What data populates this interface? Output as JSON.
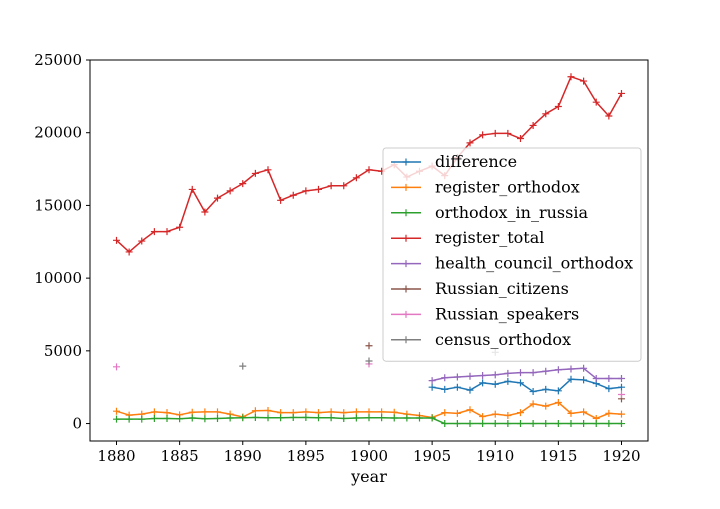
{
  "chart_data": {
    "type": "line",
    "xlabel": "year",
    "ylabel": "",
    "xlim": [
      1877.9,
      1922.1
    ],
    "ylim": [
      -1200,
      25000
    ],
    "xticks": [
      1880,
      1885,
      1890,
      1895,
      1900,
      1905,
      1910,
      1915,
      1920
    ],
    "xtick_labels": [
      "1880",
      "1885",
      "1890",
      "1895",
      "1900",
      "1905",
      "1910",
      "1915",
      "1920"
    ],
    "yticks": [
      0,
      5000,
      10000,
      15000,
      20000,
      25000
    ],
    "ytick_labels": [
      "0",
      "5000",
      "10000",
      "15000",
      "20000",
      "25000"
    ],
    "grid": false,
    "legend_position": "center-right",
    "marker": "+",
    "series": [
      {
        "name": "difference",
        "color": "#1f77b4",
        "x": [
          1905,
          1906,
          1907,
          1908,
          1909,
          1910,
          1911,
          1912,
          1913,
          1914,
          1915,
          1916,
          1917,
          1918,
          1919,
          1920
        ],
        "y": [
          2500,
          2350,
          2500,
          2300,
          2800,
          2700,
          2900,
          2800,
          2200,
          2350,
          2250,
          3050,
          3000,
          2750,
          2400,
          2500
        ]
      },
      {
        "name": "register_orthodox",
        "color": "#ff7f0e",
        "x": [
          1880,
          1881,
          1882,
          1883,
          1884,
          1885,
          1886,
          1887,
          1888,
          1889,
          1890,
          1891,
          1892,
          1893,
          1894,
          1895,
          1896,
          1897,
          1898,
          1899,
          1900,
          1901,
          1902,
          1903,
          1904,
          1905,
          1906,
          1907,
          1908,
          1909,
          1910,
          1911,
          1912,
          1913,
          1914,
          1915,
          1916,
          1917,
          1918,
          1919,
          1920
        ],
        "y": [
          850,
          580,
          650,
          800,
          750,
          600,
          780,
          800,
          800,
          650,
          450,
          880,
          900,
          750,
          750,
          800,
          750,
          800,
          750,
          800,
          800,
          800,
          780,
          650,
          550,
          420,
          750,
          700,
          950,
          480,
          650,
          550,
          750,
          1350,
          1200,
          1450,
          700,
          800,
          350,
          700,
          650
        ]
      },
      {
        "name": "orthodox_in_russia",
        "color": "#2ca02c",
        "x": [
          1880,
          1881,
          1882,
          1883,
          1884,
          1885,
          1886,
          1887,
          1888,
          1889,
          1890,
          1891,
          1892,
          1893,
          1894,
          1895,
          1896,
          1897,
          1898,
          1899,
          1900,
          1901,
          1902,
          1903,
          1904,
          1905,
          1906,
          1907,
          1908,
          1909,
          1910,
          1911,
          1912,
          1913,
          1914,
          1915,
          1916,
          1917,
          1918,
          1919,
          1920
        ],
        "y": [
          300,
          300,
          300,
          350,
          350,
          330,
          380,
          330,
          350,
          380,
          400,
          420,
          400,
          400,
          420,
          420,
          400,
          400,
          350,
          380,
          400,
          400,
          380,
          380,
          380,
          380,
          0,
          0,
          0,
          0,
          0,
          0,
          0,
          0,
          0,
          0,
          0,
          0,
          0,
          0,
          0
        ]
      },
      {
        "name": "register_total",
        "color": "#d62728",
        "x": [
          1880,
          1881,
          1882,
          1883,
          1884,
          1885,
          1886,
          1887,
          1888,
          1889,
          1890,
          1891,
          1892,
          1893,
          1894,
          1895,
          1896,
          1897,
          1898,
          1899,
          1900,
          1901,
          1902,
          1903,
          1904,
          1905,
          1906,
          1907,
          1908,
          1909,
          1910,
          1911,
          1912,
          1913,
          1914,
          1915,
          1916,
          1917,
          1918,
          1919,
          1920
        ],
        "y": [
          12600,
          11800,
          12550,
          13200,
          13200,
          13500,
          16100,
          14550,
          15500,
          16000,
          16500,
          17200,
          17450,
          15350,
          15700,
          16000,
          16100,
          16350,
          16350,
          16900,
          17450,
          17350,
          17800,
          16950,
          17350,
          17700,
          17050,
          18300,
          19300,
          19850,
          19950,
          19950,
          19600,
          20500,
          21300,
          21800,
          23850,
          23550,
          22100,
          21150,
          22700
        ]
      },
      {
        "name": "health_council_orthodox",
        "color": "#9467bd",
        "x": [
          1905,
          1906,
          1907,
          1908,
          1909,
          1910,
          1911,
          1912,
          1913,
          1914,
          1915,
          1916,
          1917,
          1918,
          1919,
          1920
        ],
        "y": [
          2950,
          3150,
          3200,
          3250,
          3300,
          3350,
          3450,
          3500,
          3500,
          3600,
          3700,
          3750,
          3800,
          3100,
          3100,
          3100
        ]
      },
      {
        "name": "Russian_citizens",
        "color": "#8c564b",
        "x": [
          1900,
          1920
        ],
        "y": [
          5350,
          1700
        ]
      },
      {
        "name": "Russian_speakers",
        "color": "#e377c2",
        "x": [
          1880,
          1900,
          1920
        ],
        "y": [
          3900,
          4100,
          2000
        ]
      },
      {
        "name": "census_orthodox",
        "color": "#7f7f7f",
        "x": [
          1890,
          1900,
          1910
        ],
        "y": [
          3950,
          4300,
          4900
        ]
      }
    ]
  }
}
